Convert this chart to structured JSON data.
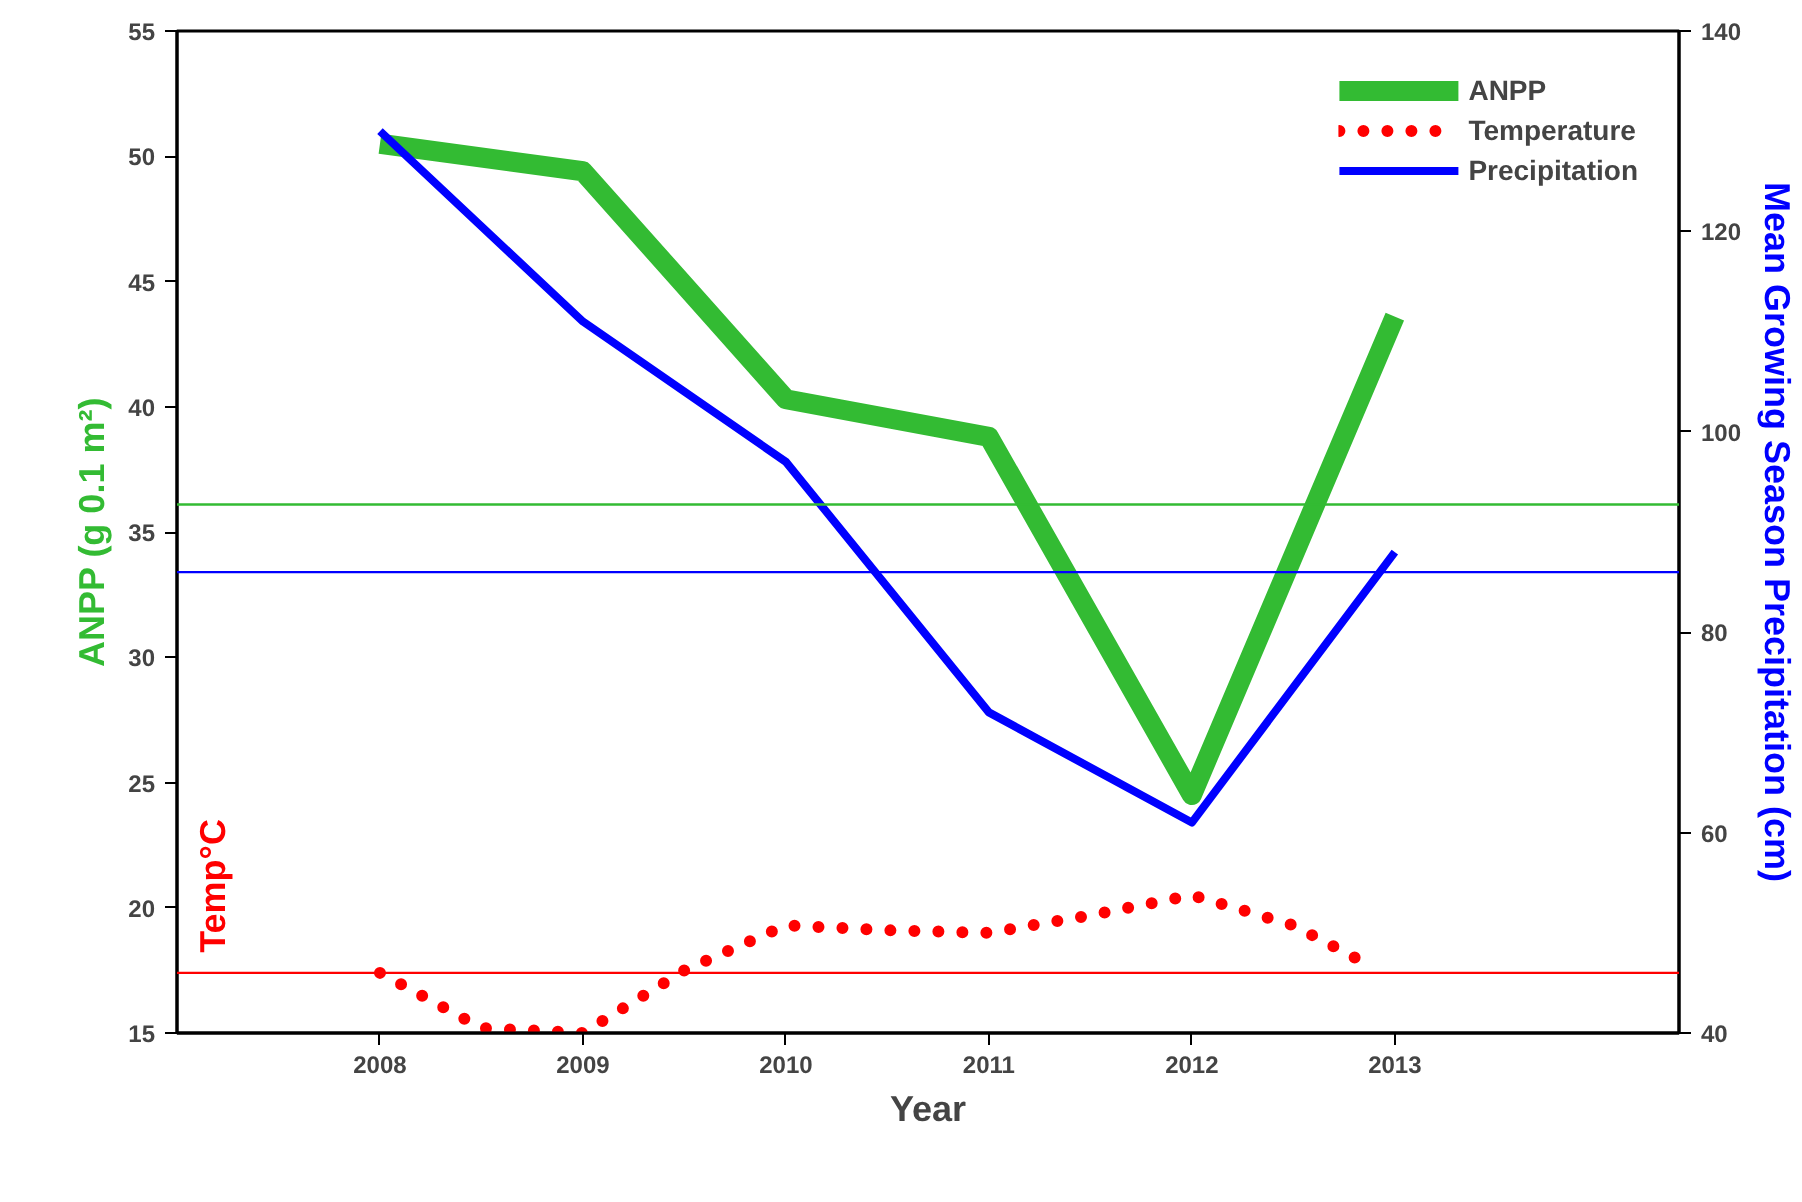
{
  "chart_data": {
    "type": "line",
    "xlabel": "Year",
    "ylabel": "ANPP (g 0.1 m²)",
    "y2label": "Mean Growing Season Precipitation (cm)",
    "annotations": [
      "Temp°C"
    ],
    "xlim": [
      2007.0,
      2014.4
    ],
    "xticks": [
      2008,
      2009,
      2010,
      2011,
      2012,
      2013
    ],
    "ylim": [
      15,
      55
    ],
    "yticks": [
      15,
      20,
      25,
      30,
      35,
      40,
      45,
      50,
      55
    ],
    "y2lim": [
      40,
      140
    ],
    "y2ticks": [
      40,
      60,
      80,
      100,
      120,
      140
    ],
    "grid": false,
    "legend": "top right",
    "marker": "none",
    "series": [
      {
        "name": "ANPP",
        "color": "#33bb33",
        "line_style": "solid",
        "x": [
          2008,
          2009,
          2010,
          2011,
          2012,
          2013
        ],
        "values": [
          50.5,
          49.4,
          40.3,
          38.8,
          24.5,
          43.6
        ]
      },
      {
        "name": "Temperature",
        "color": "#ff0000",
        "line_style": "dotted",
        "x": [
          2008,
          2008.5,
          2009,
          2009.5,
          2010,
          2010.5,
          2011,
          2011.5,
          2012,
          2012.5,
          2012.9
        ],
        "values": [
          17.4,
          15.2,
          15.0,
          17.5,
          19.3,
          19.1,
          19.0,
          19.7,
          20.5,
          19.3,
          17.6
        ]
      },
      {
        "name": "Precipitation",
        "color": "#0000ff",
        "line_style": "solid",
        "axis": "y2",
        "x": [
          2008,
          2009,
          2010,
          2011,
          2012,
          2013
        ],
        "values": [
          130,
          111,
          97,
          72,
          61,
          88
        ]
      }
    ],
    "ref_lines": [
      {
        "axis": "y",
        "value": 36.1,
        "color": "#33bb33"
      },
      {
        "axis": "y2",
        "value": 86,
        "color": "#0000ff"
      },
      {
        "axis": "y",
        "value": 17.4,
        "color": "#ff0000"
      }
    ]
  }
}
